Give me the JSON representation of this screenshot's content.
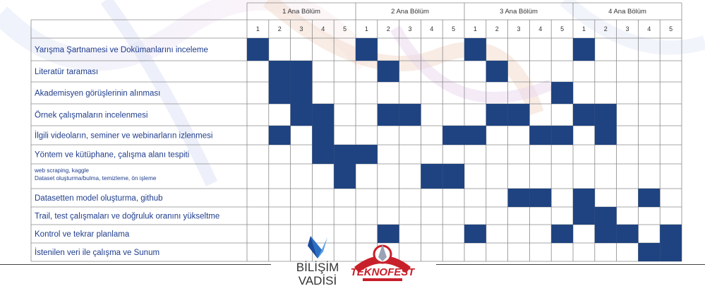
{
  "chart_data": {
    "type": "table",
    "phases": [
      "1 Ana Bölüm",
      "2 Ana Bölüm",
      "3 Ana Bölüm",
      "4 Ana Bölüm"
    ],
    "sub_periods": [
      "1",
      "2",
      "3",
      "4",
      "5"
    ],
    "tasks": [
      {
        "label": "Yarışma Şartnamesi ve Dokümanlarını inceleme",
        "filled": [
          1,
          6,
          11,
          16
        ]
      },
      {
        "label": "Literatür taraması",
        "filled": [
          2,
          3,
          7,
          12
        ]
      },
      {
        "label": "Akademisyen görüşlerinin alınması",
        "filled": [
          2,
          3,
          15
        ]
      },
      {
        "label": "Örnek çalışmaların incelenmesi",
        "filled": [
          3,
          4,
          7,
          8,
          12,
          13,
          16,
          17
        ]
      },
      {
        "label": "İlgili videoların, seminer ve webinarların izlenmesi",
        "filled": [
          2,
          4,
          10,
          11,
          14,
          15,
          17
        ]
      },
      {
        "label": "Yöntem ve kütüphane, çalışma alanı tespiti",
        "filled": [
          4,
          5,
          6
        ]
      },
      {
        "label": [
          "web scraping, kaggle",
          "Dataset oluşturma/bulma, temizleme, ön işleme"
        ],
        "filled": [
          5,
          9,
          10
        ]
      },
      {
        "label": "Datasetten model oluşturma, github",
        "filled": [
          13,
          14,
          16,
          19
        ]
      },
      {
        "label": "Trail, test çalışmaları ve doğruluk oranını yükseltme",
        "filled": [
          16,
          17
        ]
      },
      {
        "label": "Kontrol ve tekrar planlama",
        "filled": [
          7,
          11,
          15,
          17,
          18,
          20
        ]
      },
      {
        "label": "İstenilen veri ile çalışma ve Sunum",
        "filled": [
          19,
          20
        ]
      }
    ]
  },
  "footer": {
    "logo_left_line1": "BİLİŞİM",
    "logo_left_line2": "VADİSİ",
    "logo_right_text": "TEKNOFEST"
  },
  "colors": {
    "fill": "#1f4380",
    "grid": "#8a8a8a",
    "label": "#1f3d8c"
  }
}
